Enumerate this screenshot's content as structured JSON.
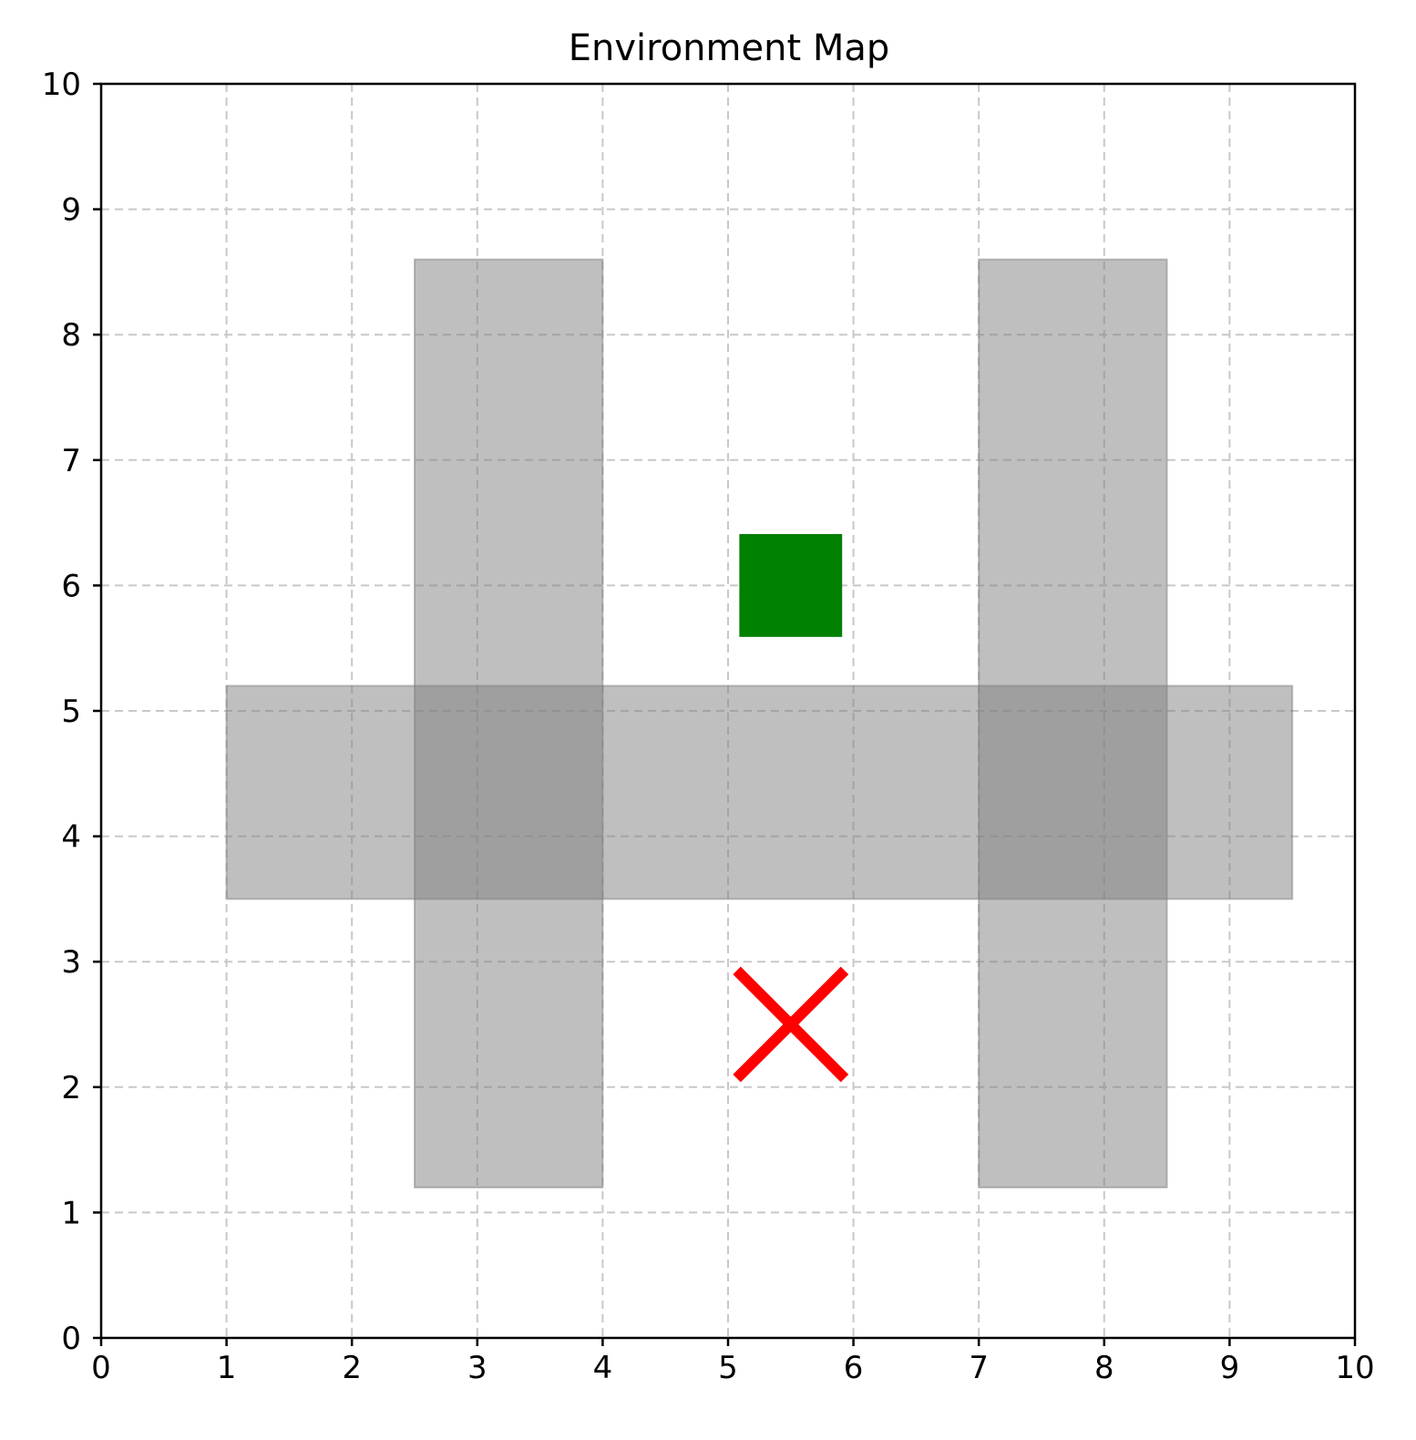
{
  "chart_data": {
    "type": "scatter",
    "title": "Environment Map",
    "xlabel": "",
    "ylabel": "",
    "xlim": [
      0,
      10
    ],
    "ylim": [
      0,
      10
    ],
    "x_ticks": [
      "0",
      "1",
      "2",
      "3",
      "4",
      "5",
      "6",
      "7",
      "8",
      "9",
      "10"
    ],
    "y_ticks": [
      "0",
      "1",
      "2",
      "3",
      "4",
      "5",
      "6",
      "7",
      "8",
      "9",
      "10"
    ],
    "grid": true,
    "obstacles": [
      {
        "x0": 2.5,
        "x1": 4.0,
        "y0": 1.2,
        "y1": 8.6,
        "color": "#808080",
        "alpha": 0.5
      },
      {
        "x0": 7.0,
        "x1": 8.5,
        "y0": 1.2,
        "y1": 8.6,
        "color": "#808080",
        "alpha": 0.5
      },
      {
        "x0": 1.0,
        "x1": 9.5,
        "y0": 3.5,
        "y1": 5.2,
        "color": "#808080",
        "alpha": 0.5
      }
    ],
    "goal": {
      "x0": 5.09,
      "x1": 5.91,
      "y0": 5.59,
      "y1": 6.41,
      "color": "#008000",
      "marker": "square"
    },
    "start": {
      "x": 5.5,
      "y": 2.5,
      "half_size": 0.43,
      "color": "#ff0000",
      "marker": "x"
    }
  }
}
